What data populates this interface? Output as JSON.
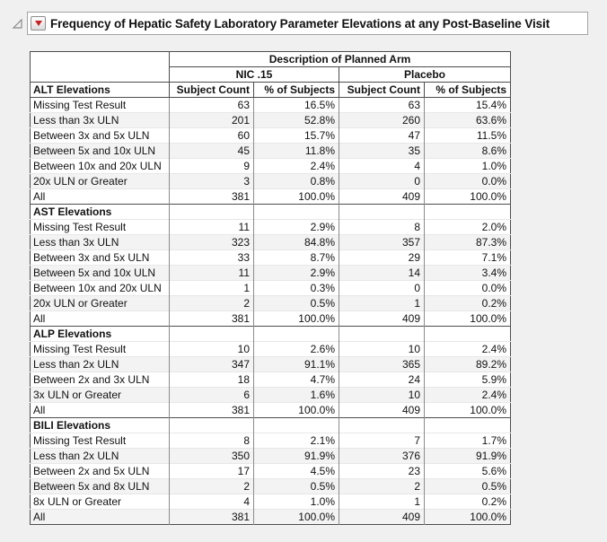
{
  "colors": {
    "page_bg": "#f0f0f0",
    "red_triangle_accent": "#cc1f1f",
    "header_border": "#4d4d4d",
    "grid_line": "#8c8c8c",
    "row_stripe": "#f3f3f3"
  },
  "outline": {
    "title": "Frequency of Hepatic Safety Laboratory Parameter Elevations at any Post-Baseline Visit",
    "disclosure_icon": "open-disclosure-triangle",
    "menu_icon": "red-triangle-menu"
  },
  "table": {
    "group_header": "Description of Planned Arm",
    "arm_headers": [
      "NIC .15",
      "Placebo"
    ],
    "measure_headers": [
      "Subject Count",
      "% of Subjects",
      "Subject Count",
      "% of Subjects"
    ],
    "sections": [
      {
        "label": "ALT Elevations",
        "rows": [
          {
            "label": "Missing Test Result",
            "values": [
              "63",
              "16.5%",
              "63",
              "15.4%"
            ]
          },
          {
            "label": "Less than 3x ULN",
            "values": [
              "201",
              "52.8%",
              "260",
              "63.6%"
            ]
          },
          {
            "label": "Between 3x and 5x ULN",
            "values": [
              "60",
              "15.7%",
              "47",
              "11.5%"
            ]
          },
          {
            "label": "Between 5x and 10x ULN",
            "values": [
              "45",
              "11.8%",
              "35",
              "8.6%"
            ]
          },
          {
            "label": "Between 10x and 20x ULN",
            "values": [
              "9",
              "2.4%",
              "4",
              "1.0%"
            ]
          },
          {
            "label": "20x ULN or Greater",
            "values": [
              "3",
              "0.8%",
              "0",
              "0.0%"
            ]
          },
          {
            "label": "All",
            "values": [
              "381",
              "100.0%",
              "409",
              "100.0%"
            ]
          }
        ]
      },
      {
        "label": "AST Elevations",
        "rows": [
          {
            "label": "Missing Test Result",
            "values": [
              "11",
              "2.9%",
              "8",
              "2.0%"
            ]
          },
          {
            "label": "Less than 3x ULN",
            "values": [
              "323",
              "84.8%",
              "357",
              "87.3%"
            ]
          },
          {
            "label": "Between 3x and 5x ULN",
            "values": [
              "33",
              "8.7%",
              "29",
              "7.1%"
            ]
          },
          {
            "label": "Between 5x and 10x ULN",
            "values": [
              "11",
              "2.9%",
              "14",
              "3.4%"
            ]
          },
          {
            "label": "Between 10x and 20x ULN",
            "values": [
              "1",
              "0.3%",
              "0",
              "0.0%"
            ]
          },
          {
            "label": "20x ULN or Greater",
            "values": [
              "2",
              "0.5%",
              "1",
              "0.2%"
            ]
          },
          {
            "label": "All",
            "values": [
              "381",
              "100.0%",
              "409",
              "100.0%"
            ]
          }
        ]
      },
      {
        "label": "ALP Elevations",
        "rows": [
          {
            "label": "Missing Test Result",
            "values": [
              "10",
              "2.6%",
              "10",
              "2.4%"
            ]
          },
          {
            "label": "Less than 2x ULN",
            "values": [
              "347",
              "91.1%",
              "365",
              "89.2%"
            ]
          },
          {
            "label": "Between 2x and 3x ULN",
            "values": [
              "18",
              "4.7%",
              "24",
              "5.9%"
            ]
          },
          {
            "label": "3x ULN or Greater",
            "values": [
              "6",
              "1.6%",
              "10",
              "2.4%"
            ]
          },
          {
            "label": "All",
            "values": [
              "381",
              "100.0%",
              "409",
              "100.0%"
            ]
          }
        ]
      },
      {
        "label": "BILI Elevations",
        "rows": [
          {
            "label": "Missing Test Result",
            "values": [
              "8",
              "2.1%",
              "7",
              "1.7%"
            ]
          },
          {
            "label": "Less than 2x ULN",
            "values": [
              "350",
              "91.9%",
              "376",
              "91.9%"
            ]
          },
          {
            "label": "Between 2x and 5x ULN",
            "values": [
              "17",
              "4.5%",
              "23",
              "5.6%"
            ]
          },
          {
            "label": "Between 5x and 8x ULN",
            "values": [
              "2",
              "0.5%",
              "2",
              "0.5%"
            ]
          },
          {
            "label": "8x ULN or Greater",
            "values": [
              "4",
              "1.0%",
              "1",
              "0.2%"
            ]
          },
          {
            "label": "All",
            "values": [
              "381",
              "100.0%",
              "409",
              "100.0%"
            ]
          }
        ]
      }
    ]
  }
}
